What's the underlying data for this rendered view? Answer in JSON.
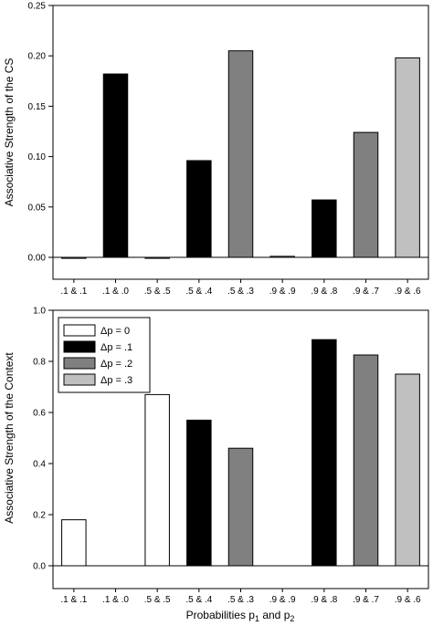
{
  "chart_data": [
    {
      "type": "bar",
      "ylabel": "Associative Strength of the CS",
      "xlabel": "",
      "ylim": [
        0,
        0.25
      ],
      "yticks": [
        "0.00",
        "0.05",
        "0.10",
        "0.15",
        "0.20",
        "0.25"
      ],
      "ytick_values": [
        0,
        0.05,
        0.1,
        0.15,
        0.2,
        0.25
      ],
      "categories": [
        ".1 & .1",
        ".1 & .0",
        ".5 & .5",
        ".5 & .4",
        ".5 & .3",
        ".9 & .9",
        ".9 & .8",
        ".9 & .7",
        ".9 & .6"
      ],
      "values": [
        -0.001,
        0.182,
        -0.001,
        0.096,
        0.205,
        0.001,
        0.057,
        0.124,
        0.198
      ],
      "groups": [
        0,
        1,
        0,
        1,
        2,
        0,
        1,
        2,
        3
      ],
      "grid": false
    },
    {
      "type": "bar",
      "ylabel": "Associative Strength of the Context",
      "xlabel": "Probabilities p",
      "xlabel_sub1": "1",
      "xlabel_mid": " and p",
      "xlabel_sub2": "2",
      "ylim": [
        0,
        1.0
      ],
      "yticks": [
        "0.0",
        "0.2",
        "0.4",
        "0.6",
        "0.8",
        "1.0"
      ],
      "ytick_values": [
        0,
        0.2,
        0.4,
        0.6,
        0.8,
        1.0
      ],
      "categories": [
        ".1 & .1",
        ".1 & .0",
        ".5 & .5",
        ".5 & .4",
        ".5 & .3",
        ".9 & .9",
        ".9 & .8",
        ".9 & .7",
        ".9 & .6"
      ],
      "values": [
        0.18,
        0,
        0.67,
        0.57,
        0.46,
        0,
        0.885,
        0.825,
        0.75
      ],
      "groups": [
        0,
        1,
        0,
        1,
        2,
        0,
        1,
        2,
        3
      ],
      "legend": {
        "placement": "top-left",
        "entries": [
          {
            "label": "Δp = 0",
            "group": 0
          },
          {
            "label": "Δp = .1",
            "group": 1
          },
          {
            "label": "Δp = .2",
            "group": 2
          },
          {
            "label": "Δp = .3",
            "group": 3
          }
        ]
      },
      "grid": false
    }
  ],
  "group_colors": [
    "#ffffff",
    "#000000",
    "#808080",
    "#c0c0c0"
  ]
}
